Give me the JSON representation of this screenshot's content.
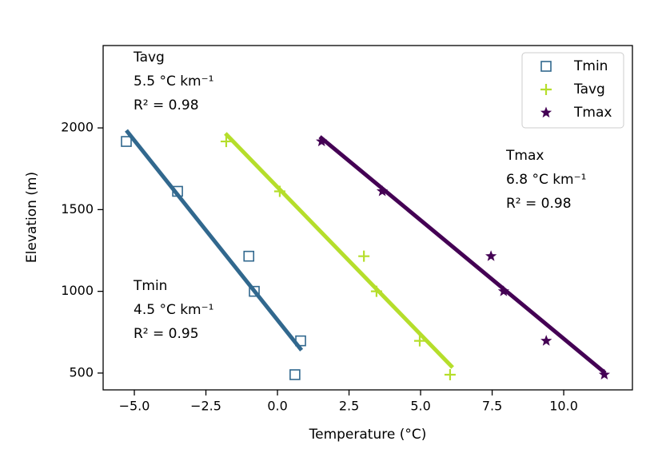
{
  "chart_data": {
    "type": "scatter",
    "xlabel": "Temperature (°C)",
    "ylabel": "Elevation (m)",
    "xlim": [
      -6.09,
      12.4
    ],
    "ylim": [
      397,
      2504
    ],
    "xticks": [
      {
        "value": -5,
        "label": "−5.0"
      },
      {
        "value": -2.5,
        "label": "−2.5"
      },
      {
        "value": 0,
        "label": "0.0"
      },
      {
        "value": 2.5,
        "label": "2.5"
      },
      {
        "value": 5,
        "label": "5.0"
      },
      {
        "value": 7.5,
        "label": "7.5"
      },
      {
        "value": 10,
        "label": "10.0"
      }
    ],
    "yticks": [
      500,
      1000,
      1500,
      2000
    ],
    "legend": "upper right",
    "series": [
      {
        "name": "Tmin",
        "color": "#31688e",
        "marker": "square",
        "x": [
          -5.28,
          -3.49,
          -1.0,
          -0.81,
          0.81,
          0.61
        ],
        "values": [
          1917,
          1612,
          1215,
          1000,
          697,
          490
        ],
        "fit": {
          "x": [
            -5.28,
            0.84
          ],
          "values": [
            1985,
            640
          ]
        }
      },
      {
        "name": "Tavg",
        "color": "#b5de2b",
        "marker": "plus",
        "x": [
          -1.79,
          0.08,
          3.02,
          3.46,
          4.97,
          6.03
        ],
        "values": [
          1917,
          1612,
          1215,
          1000,
          697,
          490
        ],
        "fit": {
          "x": [
            -1.82,
            6.12
          ],
          "values": [
            1966,
            534
          ]
        }
      },
      {
        "name": "Tmax",
        "color": "#440154",
        "marker": "star",
        "x": [
          1.54,
          3.66,
          7.46,
          7.9,
          9.39,
          11.42
        ],
        "values": [
          1917,
          1612,
          1215,
          1000,
          697,
          490
        ],
        "fit": {
          "x": [
            1.48,
            11.45
          ],
          "values": [
            1946,
            500
          ]
        }
      }
    ],
    "annotations": [
      [
        "Tavg",
        "5.5 °C km⁻¹",
        "R² = 0.98"
      ],
      [
        "Tmin",
        "4.5 °C km⁻¹",
        "R² = 0.95"
      ],
      [
        "Tmax",
        "6.8 °C km⁻¹",
        "R² = 0.98"
      ]
    ]
  }
}
